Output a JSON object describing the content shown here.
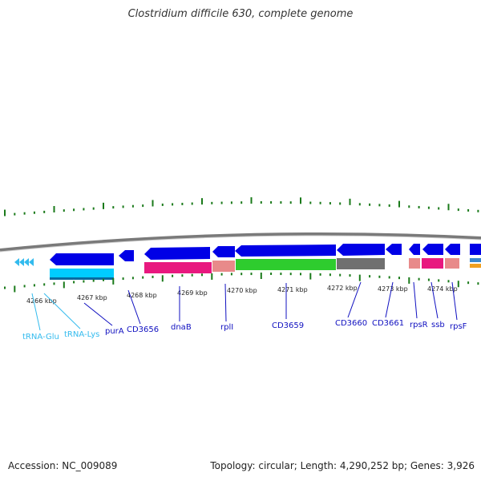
{
  "title": "Clostridium difficile 630, complete genome",
  "accession": "Accession: NC_009089",
  "summary": "Topology: circular; Length: 4,290,252 bp; Genes: 3,926",
  "colors": {
    "cds": "#0000e6",
    "trna": "#00ccff",
    "rrna_pink": "#e8197f",
    "salmon": "#e88a8a",
    "green": "#2ecc2e",
    "gray": "#707070",
    "tick": "#1a7a1a",
    "backbone": "#888888"
  },
  "scale": {
    "ticks": [
      "4266 kbp",
      "4267 kbp",
      "4268 kbp",
      "4269 kbp",
      "4270 kbp",
      "4271 kbp",
      "4272 kbp",
      "4273 kbp",
      "4274 kbp"
    ]
  },
  "genes": [
    {
      "name": "tRNA-Glu",
      "color": "#33bbee"
    },
    {
      "name": "tRNA-Lys",
      "color": "#33bbee"
    },
    {
      "name": "purA",
      "color": "#1010c0"
    },
    {
      "name": "CD3656",
      "color": "#1010c0"
    },
    {
      "name": "dnaB",
      "color": "#1010c0"
    },
    {
      "name": "rplI",
      "color": "#1010c0"
    },
    {
      "name": "CD3659",
      "color": "#1010c0"
    },
    {
      "name": "CD3660",
      "color": "#1010c0"
    },
    {
      "name": "CD3661",
      "color": "#1010c0"
    },
    {
      "name": "rpsR",
      "color": "#1010c0"
    },
    {
      "name": "ssb",
      "color": "#1010c0"
    },
    {
      "name": "rpsF",
      "color": "#1010c0"
    }
  ]
}
